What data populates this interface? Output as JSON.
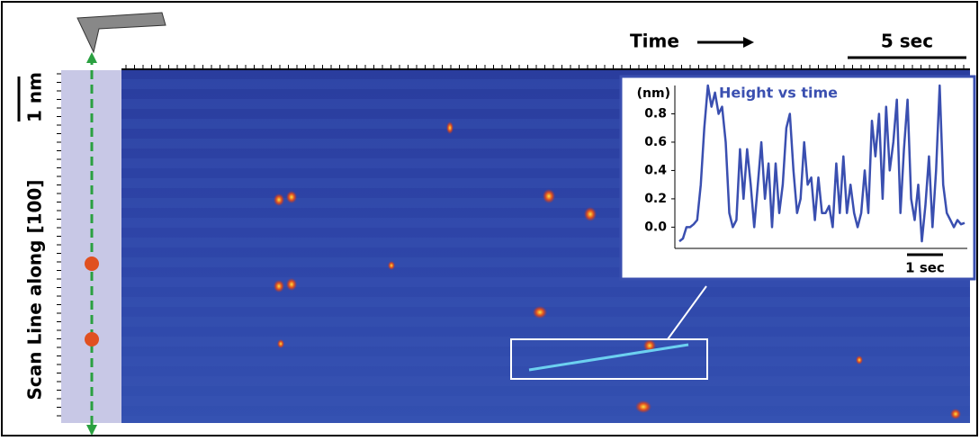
{
  "figure": {
    "time_label": "Time",
    "time_scale": "5 sec",
    "length_scale": "1 nm",
    "y_axis_label": "Scan Line along [100]"
  },
  "chart_data": {
    "type": "line",
    "title": "Height vs time",
    "ylabel": "(nm)",
    "scale_label": "1 sec",
    "color": "#3a4fb0",
    "values": [
      -0.1,
      -0.08,
      0.0,
      0.0,
      0.02,
      0.05,
      0.3,
      0.7,
      1.0,
      0.85,
      0.95,
      0.8,
      0.85,
      0.6,
      0.1,
      0.0,
      0.05,
      0.55,
      0.2,
      0.55,
      0.3,
      0.0,
      0.3,
      0.6,
      0.2,
      0.45,
      0.0,
      0.45,
      0.1,
      0.3,
      0.7,
      0.8,
      0.4,
      0.1,
      0.2,
      0.6,
      0.3,
      0.35,
      0.05,
      0.35,
      0.1,
      0.1,
      0.15,
      0.0,
      0.45,
      0.1,
      0.5,
      0.1,
      0.3,
      0.1,
      0.0,
      0.1,
      0.4,
      0.1,
      0.75,
      0.5,
      0.8,
      0.2,
      0.85,
      0.4,
      0.6,
      0.9,
      0.1,
      0.55,
      0.9,
      0.2,
      0.05,
      0.3,
      -0.1,
      0.15,
      0.5,
      0.0,
      0.4,
      1.0,
      0.3,
      0.1,
      0.05,
      0.0,
      0.05,
      0.02,
      0.03
    ],
    "ylim": [
      -0.15,
      1.0
    ],
    "yticks": [
      {
        "value": 0,
        "label": "0.0"
      },
      0.2,
      0.4,
      0.6,
      0.8
    ]
  }
}
